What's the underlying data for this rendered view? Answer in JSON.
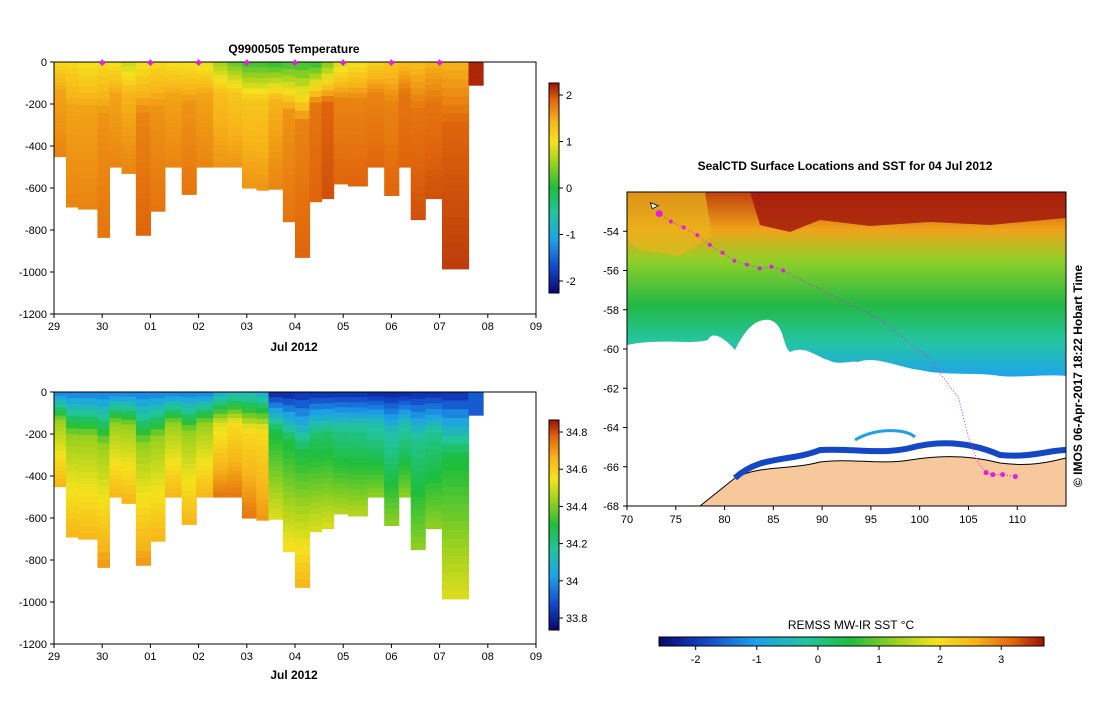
{
  "temperature_panel": {
    "title": "Q9900505  Temperature",
    "xlabel": "Jul 2012",
    "x_ticks": [
      "29",
      "30",
      "01",
      "02",
      "03",
      "04",
      "05",
      "06",
      "07",
      "08",
      "09"
    ],
    "y_ticks": [
      "0",
      "-200",
      "-400",
      "-600",
      "-800",
      "-1000",
      "-1200"
    ],
    "colorbar_ticks": [
      "2",
      "1",
      "0",
      "-1",
      "-2"
    ]
  },
  "salinity_panel": {
    "xlabel": "Jul 2012",
    "x_ticks": [
      "29",
      "30",
      "01",
      "02",
      "03",
      "04",
      "05",
      "06",
      "07",
      "08",
      "09"
    ],
    "y_ticks": [
      "0",
      "-200",
      "-400",
      "-600",
      "-800",
      "-1000",
      "-1200"
    ],
    "colorbar_ticks": [
      "34.8",
      "34.6",
      "34.4",
      "34.2",
      "34",
      "33.8"
    ]
  },
  "map_panel": {
    "title": "SealCTD Surface Locations and SST for 04 Jul 2012",
    "x_ticks": [
      "70",
      "75",
      "80",
      "85",
      "90",
      "95",
      "100",
      "105",
      "110"
    ],
    "y_ticks": [
      "-54",
      "-56",
      "-58",
      "-60",
      "-62",
      "-64",
      "-66",
      "-68"
    ],
    "credit": "© IMOS 06-Apr-2017 18:22 Hobart Time",
    "colorbar_label": "REMSS MW-IR SST °C",
    "colorbar_ticks": [
      "-2",
      "-1",
      "0",
      "1",
      "2",
      "3"
    ]
  },
  "chart_data": [
    {
      "type": "heatmap",
      "title": "Q9900505  Temperature",
      "xlabel": "Jul 2012",
      "ylabel": "",
      "xlim": [
        0,
        10
      ],
      "ylim": [
        -1200,
        0
      ],
      "color_range": [
        -2.4,
        2.6
      ],
      "profiles": [
        {
          "x": 0.0,
          "depth": 450,
          "v": [
            1.3,
            1.8,
            2.0
          ]
        },
        {
          "x": 0.25,
          "depth": 690,
          "v": [
            1.3,
            1.8,
            2.0
          ]
        },
        {
          "x": 0.5,
          "depth": 700,
          "v": [
            1.2,
            1.8,
            2.0
          ]
        },
        {
          "x": 0.9,
          "depth": 835,
          "v": [
            1.3,
            1.9,
            2.1
          ]
        },
        {
          "x": 1.15,
          "depth": 500,
          "v": [
            1.2,
            1.8,
            2.0
          ]
        },
        {
          "x": 1.4,
          "depth": 530,
          "v": [
            0.9,
            1.7,
            2.0
          ]
        },
        {
          "x": 1.7,
          "depth": 825,
          "v": [
            1.2,
            2.0,
            2.2
          ]
        },
        {
          "x": 2.0,
          "depth": 710,
          "v": [
            1.3,
            1.9,
            2.1
          ]
        },
        {
          "x": 2.3,
          "depth": 500,
          "v": [
            1.2,
            1.8,
            2.0
          ]
        },
        {
          "x": 2.65,
          "depth": 630,
          "v": [
            1.2,
            1.9,
            2.1
          ]
        },
        {
          "x": 2.95,
          "depth": 500,
          "v": [
            1.1,
            1.8,
            2.0
          ]
        },
        {
          "x": 3.3,
          "depth": 500,
          "v": [
            0.7,
            1.6,
            1.9
          ]
        },
        {
          "x": 3.6,
          "depth": 500,
          "v": [
            0.4,
            1.5,
            1.9
          ]
        },
        {
          "x": 3.9,
          "depth": 600,
          "v": [
            0.2,
            1.5,
            1.9
          ]
        },
        {
          "x": 4.2,
          "depth": 610,
          "v": [
            0.2,
            1.5,
            1.9
          ]
        },
        {
          "x": 4.45,
          "depth": 605,
          "v": [
            0.1,
            1.7,
            2.0
          ]
        },
        {
          "x": 4.75,
          "depth": 760,
          "v": [
            0.2,
            1.9,
            2.1
          ]
        },
        {
          "x": 5.0,
          "depth": 930,
          "v": [
            0.2,
            2.0,
            2.2
          ]
        },
        {
          "x": 5.3,
          "depth": 665,
          "v": [
            0.1,
            2.1,
            2.2
          ]
        },
        {
          "x": 5.55,
          "depth": 650,
          "v": [
            0.5,
            2.2,
            2.3
          ]
        },
        {
          "x": 5.8,
          "depth": 580,
          "v": [
            1.0,
            2.0,
            2.2
          ]
        },
        {
          "x": 6.1,
          "depth": 590,
          "v": [
            1.2,
            2.0,
            2.2
          ]
        },
        {
          "x": 6.5,
          "depth": 500,
          "v": [
            1.4,
            2.0,
            2.2
          ]
        },
        {
          "x": 6.85,
          "depth": 635,
          "v": [
            1.5,
            2.0,
            2.2
          ]
        },
        {
          "x": 7.15,
          "depth": 500,
          "v": [
            1.6,
            2.1,
            2.2
          ]
        },
        {
          "x": 7.4,
          "depth": 750,
          "v": [
            1.6,
            2.1,
            2.3
          ]
        },
        {
          "x": 7.7,
          "depth": 650,
          "v": [
            1.7,
            2.1,
            2.3
          ]
        },
        {
          "x": 8.05,
          "depth": 985,
          "v": [
            1.7,
            2.2,
            2.4
          ]
        },
        {
          "x": 8.6,
          "depth": 110,
          "v": [
            2.5,
            2.5,
            2.5
          ]
        }
      ]
    },
    {
      "type": "heatmap",
      "title": "",
      "xlabel": "Jul 2012",
      "ylabel": "",
      "xlim": [
        0,
        10
      ],
      "ylim": [
        -1200,
        0
      ],
      "color_range": [
        33.72,
        34.92
      ],
      "profiles": [
        {
          "x": 0.0,
          "depth": 450,
          "v": [
            33.95,
            34.45,
            34.7
          ]
        },
        {
          "x": 0.25,
          "depth": 690,
          "v": [
            33.95,
            34.45,
            34.7
          ]
        },
        {
          "x": 0.5,
          "depth": 700,
          "v": [
            33.95,
            34.45,
            34.7
          ]
        },
        {
          "x": 0.9,
          "depth": 835,
          "v": [
            33.95,
            34.45,
            34.75
          ]
        },
        {
          "x": 1.15,
          "depth": 500,
          "v": [
            33.95,
            34.45,
            34.7
          ]
        },
        {
          "x": 1.4,
          "depth": 530,
          "v": [
            33.95,
            34.45,
            34.7
          ]
        },
        {
          "x": 1.7,
          "depth": 825,
          "v": [
            33.95,
            34.45,
            34.75
          ]
        },
        {
          "x": 2.0,
          "depth": 710,
          "v": [
            33.95,
            34.45,
            34.7
          ]
        },
        {
          "x": 2.3,
          "depth": 500,
          "v": [
            33.95,
            34.45,
            34.7
          ]
        },
        {
          "x": 2.65,
          "depth": 630,
          "v": [
            33.95,
            34.45,
            34.7
          ]
        },
        {
          "x": 2.95,
          "depth": 500,
          "v": [
            33.95,
            34.45,
            34.7
          ]
        },
        {
          "x": 3.3,
          "depth": 500,
          "v": [
            34.05,
            34.55,
            34.8
          ]
        },
        {
          "x": 3.6,
          "depth": 500,
          "v": [
            34.1,
            34.6,
            34.8
          ]
        },
        {
          "x": 3.9,
          "depth": 600,
          "v": [
            34.1,
            34.6,
            34.8
          ]
        },
        {
          "x": 4.2,
          "depth": 610,
          "v": [
            34.05,
            34.6,
            34.75
          ]
        },
        {
          "x": 4.45,
          "depth": 605,
          "v": [
            33.78,
            34.3,
            34.55
          ]
        },
        {
          "x": 4.75,
          "depth": 760,
          "v": [
            33.78,
            34.3,
            34.6
          ]
        },
        {
          "x": 5.0,
          "depth": 930,
          "v": [
            33.8,
            34.3,
            34.7
          ]
        },
        {
          "x": 5.3,
          "depth": 665,
          "v": [
            33.8,
            34.25,
            34.55
          ]
        },
        {
          "x": 5.55,
          "depth": 650,
          "v": [
            33.8,
            34.25,
            34.55
          ]
        },
        {
          "x": 5.8,
          "depth": 580,
          "v": [
            33.8,
            34.2,
            34.5
          ]
        },
        {
          "x": 6.1,
          "depth": 590,
          "v": [
            33.8,
            34.2,
            34.5
          ]
        },
        {
          "x": 6.5,
          "depth": 500,
          "v": [
            33.78,
            34.15,
            34.45
          ]
        },
        {
          "x": 6.85,
          "depth": 635,
          "v": [
            33.78,
            34.15,
            34.45
          ]
        },
        {
          "x": 7.15,
          "depth": 500,
          "v": [
            33.78,
            34.15,
            34.45
          ]
        },
        {
          "x": 7.4,
          "depth": 750,
          "v": [
            33.8,
            34.2,
            34.45
          ]
        },
        {
          "x": 7.7,
          "depth": 650,
          "v": [
            33.8,
            34.2,
            34.45
          ]
        },
        {
          "x": 8.05,
          "depth": 985,
          "v": [
            33.8,
            34.3,
            34.55
          ]
        },
        {
          "x": 8.6,
          "depth": 110,
          "v": [
            33.9,
            33.9,
            33.9
          ]
        }
      ]
    },
    {
      "type": "scatter",
      "title": "SealCTD Surface Locations and SST for 04 Jul 2012",
      "xlim": [
        70,
        115
      ],
      "ylim": [
        -68,
        -52
      ],
      "track_lon": [
        73.3,
        74.5,
        75.8,
        77.2,
        78.5,
        79.8,
        81.0,
        82.3,
        83.6,
        84.8,
        86.0
      ],
      "track_lat": [
        -53.1,
        -53.5,
        -53.8,
        -54.2,
        -54.7,
        -55.1,
        -55.5,
        -55.7,
        -55.9,
        -55.8,
        -56.0
      ],
      "end_lon": [
        106.8,
        107.5,
        108.5,
        109.8
      ],
      "end_lat": [
        -66.3,
        -66.4,
        -66.4,
        -66.5
      ]
    }
  ]
}
